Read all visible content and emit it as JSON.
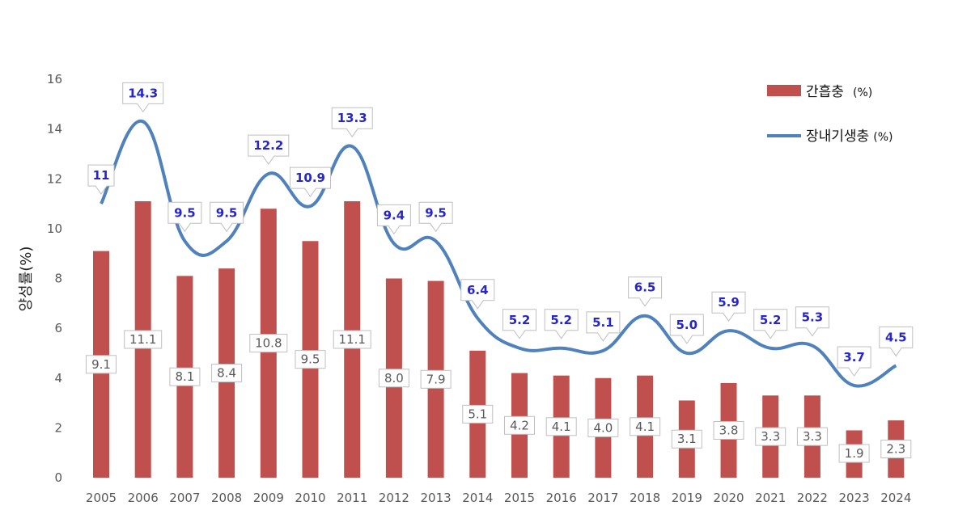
{
  "chart_data": {
    "type": "bar",
    "categories": [
      "2005",
      "2006",
      "2007",
      "2008",
      "2009",
      "2010",
      "2011",
      "2012",
      "2013",
      "2014",
      "2015",
      "2016",
      "2017",
      "2018",
      "2019",
      "2020",
      "2021",
      "2022",
      "2023",
      "2024"
    ],
    "series": [
      {
        "name": "간흡충",
        "unit": "(%)",
        "type": "bar",
        "color": "#c0504d",
        "values": [
          9.1,
          11.1,
          8.1,
          8.4,
          10.8,
          9.5,
          11.1,
          8.0,
          7.9,
          5.1,
          4.2,
          4.1,
          4.0,
          4.1,
          3.1,
          3.8,
          3.3,
          3.3,
          1.9,
          2.3
        ],
        "labels": [
          "9.1",
          "11.1",
          "8.1",
          "8.4",
          "10.8",
          "9.5",
          "11.1",
          "8.0",
          "7.9",
          "5.1",
          "4.2",
          "4.1",
          "4.0",
          "4.1",
          "3.1",
          "3.8",
          "3.3",
          "3.3",
          "1.9",
          "2.3"
        ]
      },
      {
        "name": "장내기생충",
        "unit": "(%)",
        "type": "line",
        "color": "#4f81bd",
        "values": [
          11,
          14.3,
          9.5,
          9.5,
          12.2,
          10.9,
          13.3,
          9.4,
          9.5,
          6.4,
          5.2,
          5.2,
          5.1,
          6.5,
          5.0,
          5.9,
          5.2,
          5.3,
          3.7,
          4.5
        ],
        "labels": [
          "11",
          "14.3",
          "9.5",
          "9.5",
          "12.2",
          "10.9",
          "13.3",
          "9.4",
          "9.5",
          "6.4",
          "5.2",
          "5.2",
          "5.1",
          "6.5",
          "5.0",
          "5.9",
          "5.2",
          "5.3",
          "3.7",
          "4.5"
        ],
        "label_color": "#2626cc"
      }
    ],
    "ylabel": "양성률(%)",
    "ylim": [
      0,
      16
    ],
    "yticks": [
      "0",
      "2",
      "4",
      "6",
      "8",
      "10",
      "12",
      "14",
      "16"
    ],
    "grid": false,
    "legend_position": "top-right"
  }
}
